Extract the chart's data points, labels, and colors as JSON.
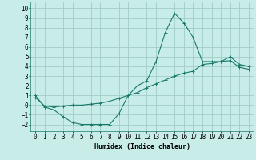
{
  "line1_x": [
    0,
    1,
    2,
    3,
    4,
    5,
    6,
    7,
    8,
    9,
    10,
    11,
    12,
    13,
    14,
    15,
    16,
    17,
    18,
    19,
    20,
    21,
    22,
    23
  ],
  "line1_y": [
    1.0,
    -0.2,
    -0.5,
    -1.2,
    -1.8,
    -2.0,
    -2.0,
    -2.0,
    -2.0,
    -0.9,
    1.0,
    2.0,
    2.5,
    4.5,
    7.5,
    9.5,
    8.5,
    7.0,
    4.5,
    4.5,
    4.5,
    5.0,
    4.2,
    4.0
  ],
  "line2_x": [
    0,
    1,
    2,
    3,
    4,
    5,
    6,
    7,
    8,
    9,
    10,
    11,
    12,
    13,
    14,
    15,
    16,
    17,
    18,
    19,
    20,
    21,
    22,
    23
  ],
  "line2_y": [
    0.8,
    -0.1,
    -0.2,
    -0.1,
    0.0,
    0.0,
    0.1,
    0.2,
    0.4,
    0.7,
    1.0,
    1.3,
    1.8,
    2.2,
    2.6,
    3.0,
    3.3,
    3.5,
    4.2,
    4.3,
    4.5,
    4.6,
    3.9,
    3.7
  ],
  "line_color": "#1a7a6a",
  "bg_color": "#c8ece8",
  "grid_color": "#a0ccc8",
  "xlabel": "Humidex (Indice chaleur)",
  "ylim": [
    -2.7,
    10.7
  ],
  "xlim": [
    -0.5,
    23.5
  ],
  "yticks": [
    -2,
    -1,
    0,
    1,
    2,
    3,
    4,
    5,
    6,
    7,
    8,
    9,
    10
  ],
  "xticks": [
    0,
    1,
    2,
    3,
    4,
    5,
    6,
    7,
    8,
    9,
    10,
    11,
    12,
    13,
    14,
    15,
    16,
    17,
    18,
    19,
    20,
    21,
    22,
    23
  ],
  "marker": "+",
  "markersize": 3,
  "linewidth": 0.8,
  "xlabel_fontsize": 6,
  "tick_fontsize": 5.5
}
